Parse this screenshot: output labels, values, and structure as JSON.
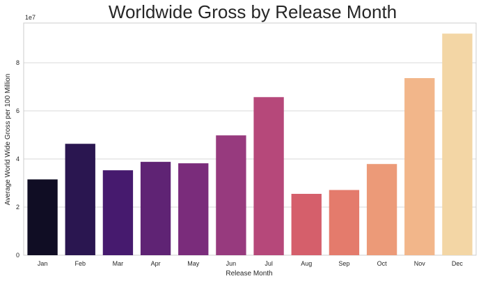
{
  "chart_data": {
    "type": "bar",
    "title": "Worldwide Gross by Release Month",
    "xlabel": "Release Month",
    "ylabel": "Average World Wide Gross per 100 Million",
    "y_scale_label": "1e7",
    "categories": [
      "Jan",
      "Feb",
      "Mar",
      "Apr",
      "May",
      "Jun",
      "Jul",
      "Aug",
      "Sep",
      "Oct",
      "Nov",
      "Dec"
    ],
    "values": [
      31500000,
      46300000,
      35300000,
      38800000,
      38200000,
      49800000,
      65700000,
      25500000,
      27100000,
      37900000,
      73600000,
      92100000
    ],
    "colors": [
      "#100d24",
      "#2a1650",
      "#461a6e",
      "#5f2374",
      "#7a2c7b",
      "#973a7e",
      "#b6487a",
      "#d55f6b",
      "#e47b6c",
      "#ec9a78",
      "#f2b68a",
      "#f3d6a5"
    ],
    "ylim": [
      0,
      96500000
    ],
    "yticks": [
      0,
      20000000,
      40000000,
      60000000,
      80000000
    ],
    "ytick_labels": [
      "0",
      "2",
      "4",
      "6",
      "8"
    ],
    "grid": "horizontal"
  }
}
